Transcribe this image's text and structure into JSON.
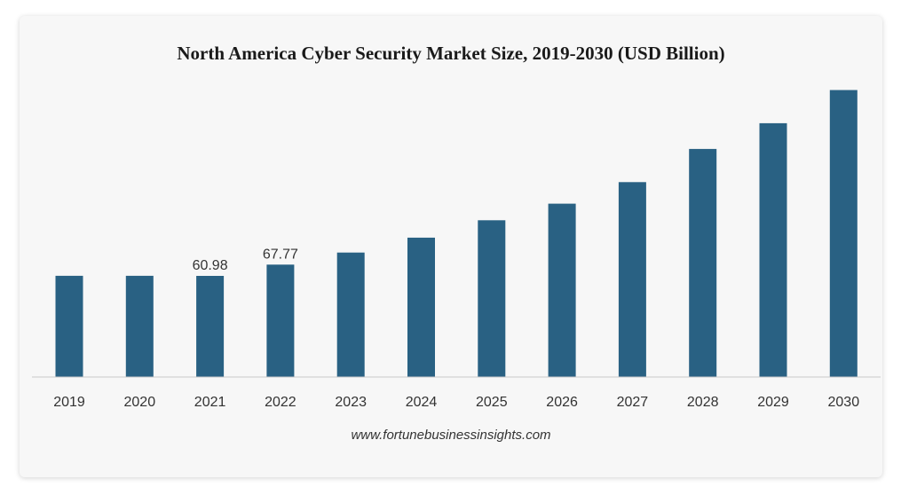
{
  "chart_data": {
    "type": "bar",
    "title": "North America Cyber Security Market Size, 2019-2030 (USD Billion)",
    "categories": [
      "2019",
      "2020",
      "2021",
      "2022",
      "2023",
      "2024",
      "2025",
      "2026",
      "2027",
      "2028",
      "2029",
      "2030"
    ],
    "values": [
      61.0,
      61.0,
      60.98,
      67.77,
      75.0,
      84.0,
      94.5,
      104.5,
      117.5,
      137.5,
      153.0,
      173.0
    ],
    "data_labels": {
      "2021": "60.98",
      "2022": "67.77"
    },
    "ylim": [
      0,
      177
    ],
    "xlabel": "",
    "ylabel": "",
    "grid": false,
    "bar_color": "#296183"
  },
  "source": "www.fortunebusinessinsights.com"
}
